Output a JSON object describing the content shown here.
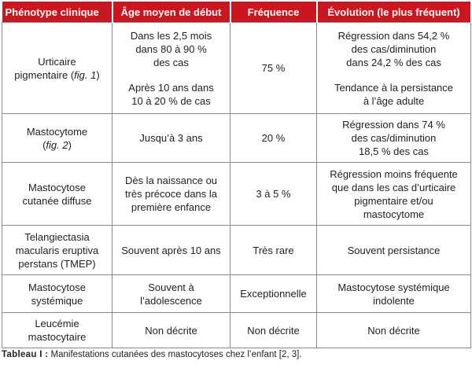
{
  "table": {
    "headers": [
      "Phénotype clinique",
      "Âge moyen de début",
      "Fréquence",
      "Évolution (le plus fréquent)"
    ],
    "rows": [
      {
        "phenotype_line1": "Urticaire",
        "phenotype_line2": "pigmentaire (",
        "phenotype_fig": "fig. 1",
        "phenotype_close": ")",
        "age_line1": "Dans les 2,5 mois",
        "age_line2": "dans 80 à 90 %",
        "age_line3": "des cas",
        "age_line4": "Après 10 ans dans",
        "age_line5": "10 à 20 % de cas",
        "frequency": "75 %",
        "evolution_line1": "Régression dans 54,2 %",
        "evolution_line2": "des cas/diminution",
        "evolution_line3": "dans 24,2 % des cas",
        "evolution_line4": "Tendance à la persistance",
        "evolution_line5": "à l’âge adulte"
      },
      {
        "phenotype_line1": "Mastocytome",
        "phenotype_open": "(",
        "phenotype_fig": "fig. 2",
        "phenotype_close": ")",
        "age": "Jusqu’à 3 ans",
        "frequency": "20 %",
        "evolution_line1": "Régression dans 74 %",
        "evolution_line2": "des cas/diminution",
        "evolution_line3": "18,5 % des cas"
      },
      {
        "phenotype_line1": "Mastocytose",
        "phenotype_line2": "cutanée diffuse",
        "age_line1": "Dès la naissance ou",
        "age_line2": "très précoce dans la",
        "age_line3": "première enfance",
        "frequency": "3 à 5 %",
        "evolution_line1": "Régression moins fréquente",
        "evolution_line2": "que dans les cas d’urticaire",
        "evolution_line3": "pigmentaire et/ou",
        "evolution_line4": "mastocytome"
      },
      {
        "phenotype_line1": "Telangiectasia",
        "phenotype_line2": "macularis eruptiva",
        "phenotype_line3": "perstans (TMEP)",
        "age": "Souvent après 10 ans",
        "frequency": "Très rare",
        "evolution": "Souvent persistance"
      },
      {
        "phenotype_line1": "Mastocytose",
        "phenotype_line2": "systémique",
        "age_line1": "Souvent à",
        "age_line2": "l’adolescence",
        "frequency": "Exceptionnelle",
        "evolution_line1": "Mastocytose systémique",
        "evolution_line2": "indolente"
      },
      {
        "phenotype_line1": "Leucémie",
        "phenotype_line2": "mastocytaire",
        "age": "Non décrite",
        "frequency": "Non décrite",
        "evolution": "Non décrite"
      }
    ]
  },
  "caption": {
    "label": "Tableau I :",
    "text": " Manifestations cutanées des mastocytoses chez l’enfant [2, 3]."
  }
}
